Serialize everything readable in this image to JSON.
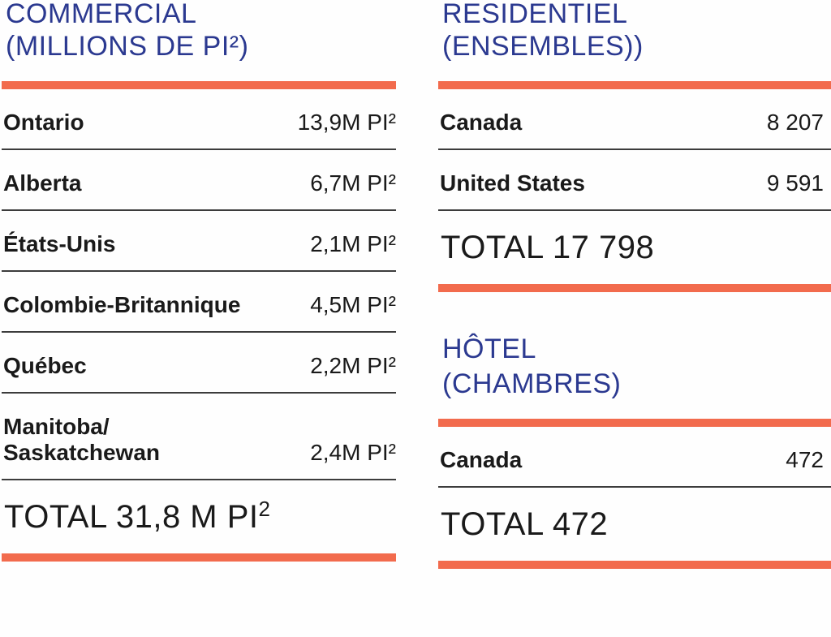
{
  "colors": {
    "heading_blue": "#2B3990",
    "accent_orange": "#F26B4D",
    "text_black": "#1A1A1A",
    "line_gray": "#3C3C3C"
  },
  "commercial": {
    "title": "COMMERCIAL\n(MILLIONS DE PI²)",
    "rows": [
      {
        "label": "Ontario",
        "value": "13,9M PI²"
      },
      {
        "label": "Alberta",
        "value": "6,7M PI²"
      },
      {
        "label": "États-Unis",
        "value": "2,1M PI²"
      },
      {
        "label": "Colombie-Britannique",
        "value": "4,5M PI²"
      },
      {
        "label": "Québec",
        "value": "2,2M PI²"
      },
      {
        "label": "Manitoba/\nSaskatchewan",
        "value": "2,4M PI²"
      }
    ],
    "total_main": "TOTAL 31,8 M PI",
    "total_sup": "2"
  },
  "residential": {
    "title": "RESIDENTIEL\n(ENSEMBLES))",
    "rows": [
      {
        "label": "Canada",
        "value": "8 207"
      },
      {
        "label": "United States",
        "value": "9 591"
      }
    ],
    "total": "TOTAL 17 798"
  },
  "hotel": {
    "title": "HÔTEL\n(CHAMBRES)",
    "rows": [
      {
        "label": "Canada",
        "value": "472"
      }
    ],
    "total": "TOTAL 472"
  }
}
